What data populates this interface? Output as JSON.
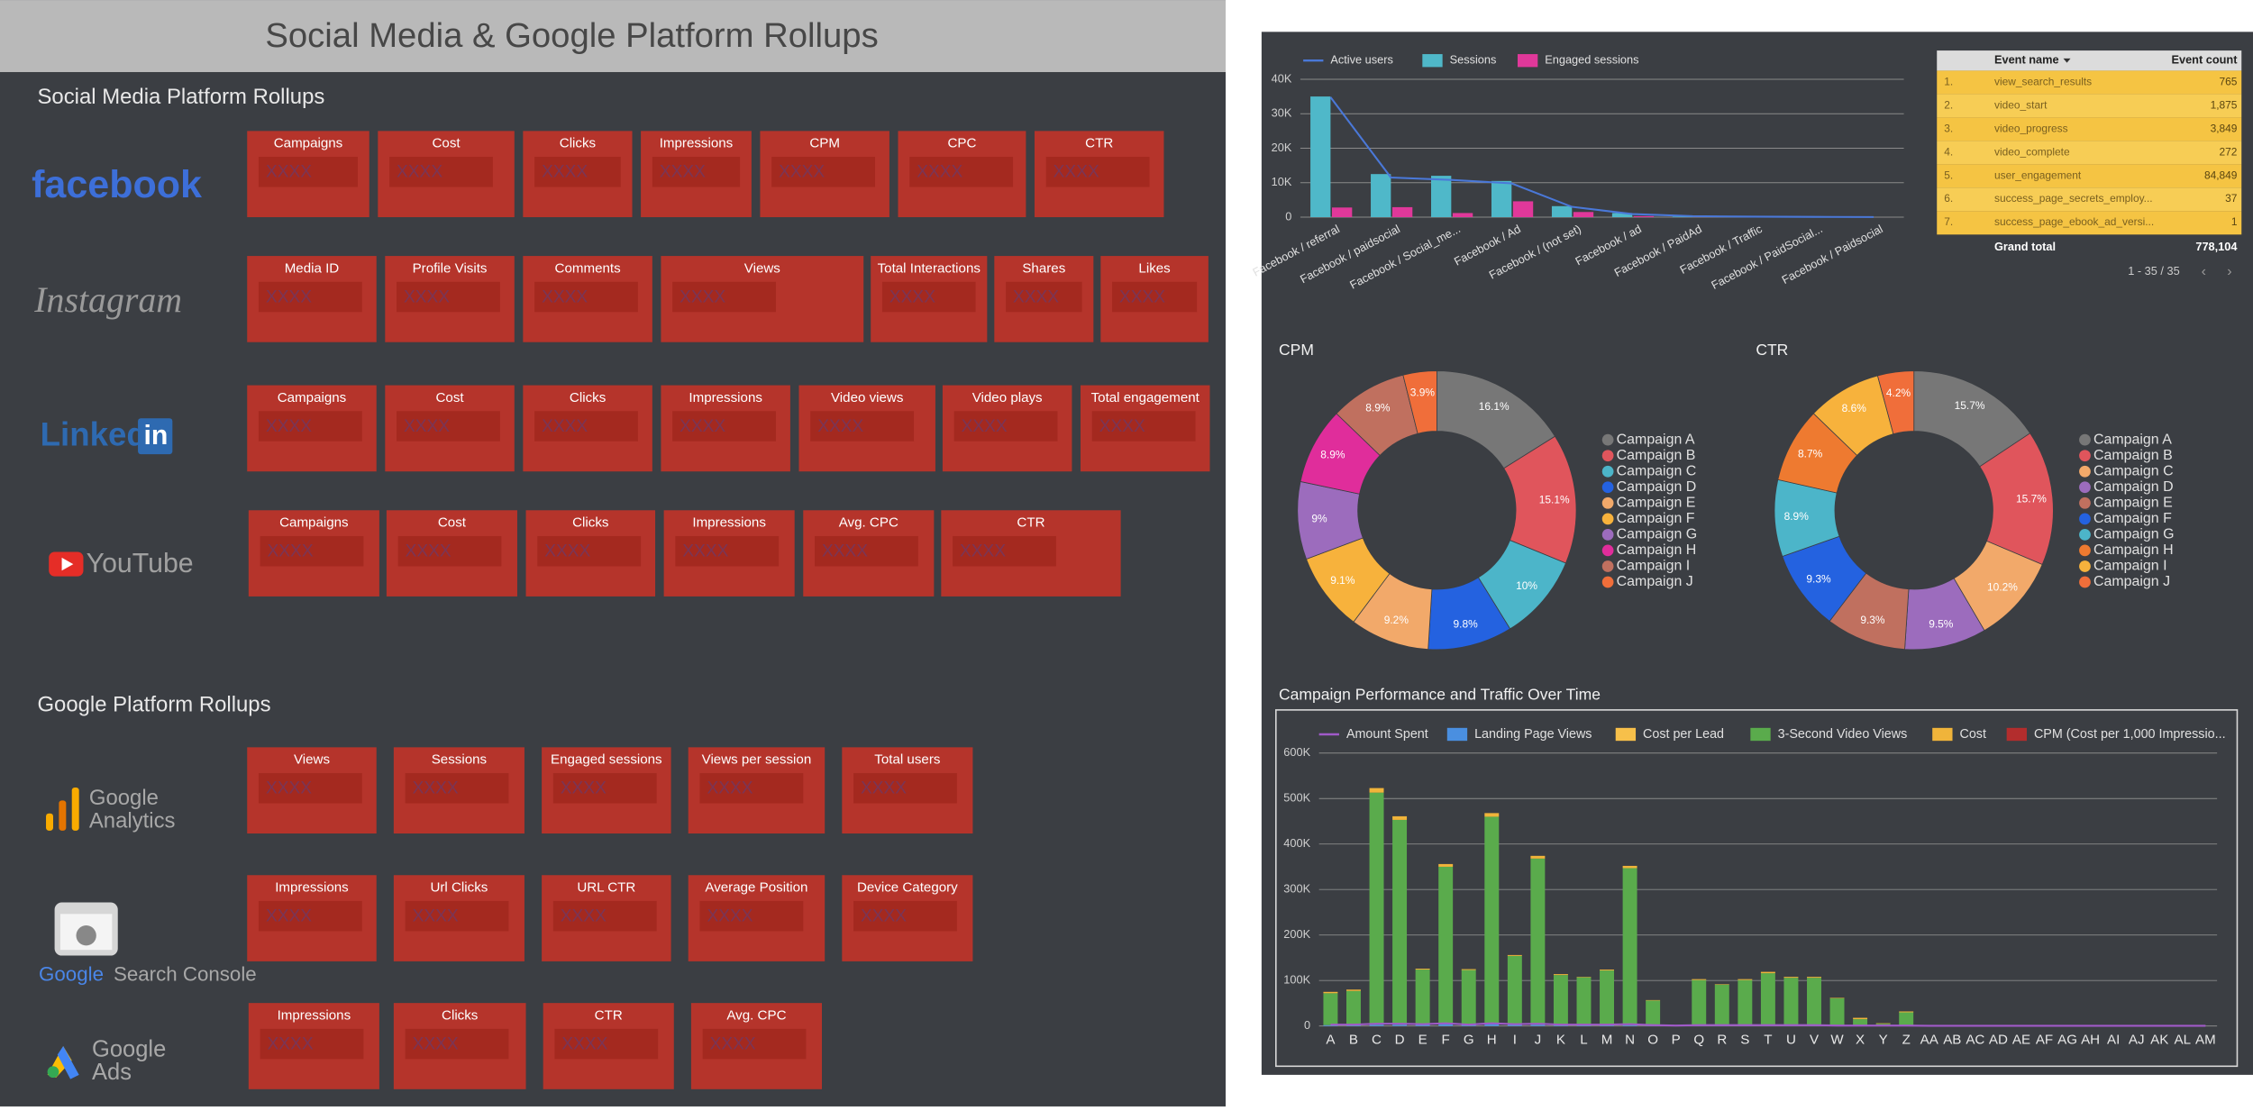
{
  "header": {
    "title": "Social Media & Google Platform Rollups"
  },
  "sections": [
    {
      "title": "Social Media Platform Rollups",
      "platforms": [
        {
          "logo": [
            "facebook"
          ],
          "cards": [
            {
              "label": "Campaigns",
              "value": "XXXX"
            },
            {
              "label": "Cost",
              "value": "XXXX"
            },
            {
              "label": "Clicks",
              "value": "XXXX"
            },
            {
              "label": "Impressions",
              "value": "XXXX"
            },
            {
              "label": "CPM",
              "value": "XXXX"
            },
            {
              "label": "CPC",
              "value": "XXXX"
            },
            {
              "label": "CTR",
              "value": "XXXX"
            }
          ]
        },
        {
          "logo": [
            "Instagram"
          ],
          "cards": [
            {
              "label": "Media ID",
              "value": "XXXX"
            },
            {
              "label": "Profile Visits",
              "value": "XXXX"
            },
            {
              "label": "Comments",
              "value": "XXXX"
            },
            {
              "label": "Views",
              "value": "XXXX"
            },
            {
              "label": "Total Interactions",
              "value": "XXXX"
            },
            {
              "label": "Shares",
              "value": "XXXX"
            },
            {
              "label": "Likes",
              "value": "XXXX"
            }
          ]
        },
        {
          "logo": [
            "Linked",
            "in"
          ],
          "cards": [
            {
              "label": "Campaigns",
              "value": "XXXX"
            },
            {
              "label": "Cost",
              "value": "XXXX"
            },
            {
              "label": "Clicks",
              "value": "XXXX"
            },
            {
              "label": "Impressions",
              "value": "XXXX"
            },
            {
              "label": "Video views",
              "value": "XXXX"
            },
            {
              "label": "Video plays",
              "value": "XXXX"
            },
            {
              "label": "Total engagement",
              "value": "XXXX"
            }
          ]
        },
        {
          "logo": [
            "YouTube"
          ],
          "cards": [
            {
              "label": "Campaigns",
              "value": "XXXX"
            },
            {
              "label": "Cost",
              "value": "XXXX"
            },
            {
              "label": "Clicks",
              "value": "XXXX"
            },
            {
              "label": "Impressions",
              "value": "XXXX"
            },
            {
              "label": "Avg. CPC",
              "value": "XXXX"
            },
            {
              "label": "CTR",
              "value": "XXXX"
            }
          ]
        }
      ]
    },
    {
      "title": "Google Platform Rollups",
      "platforms": [
        {
          "logo": [
            "Google",
            "Analytics"
          ],
          "cards": [
            {
              "label": "Views",
              "value": "XXXX"
            },
            {
              "label": "Sessions",
              "value": "XXXX"
            },
            {
              "label": "Engaged sessions",
              "value": "XXXX"
            },
            {
              "label": "Views per session",
              "value": "XXXX"
            },
            {
              "label": "Total users",
              "value": "XXXX"
            }
          ]
        },
        {
          "logo": [
            "Google",
            "Search Console"
          ],
          "cards": [
            {
              "label": "Impressions",
              "value": "XXXX"
            },
            {
              "label": "Url Clicks",
              "value": "XXXX"
            },
            {
              "label": "URL CTR",
              "value": "XXXX"
            },
            {
              "label": "Average Position",
              "value": "XXXX"
            },
            {
              "label": "Device Category",
              "value": "XXXX"
            }
          ]
        },
        {
          "logo": [
            "Google",
            "Ads"
          ],
          "cards": [
            {
              "label": "Impressions",
              "value": "XXXX"
            },
            {
              "label": "Clicks",
              "value": "XXXX"
            },
            {
              "label": "CTR",
              "value": "XXXX"
            },
            {
              "label": "Avg. CPC",
              "value": "XXXX"
            }
          ]
        }
      ]
    }
  ],
  "event_table": {
    "columns": [
      "Event name",
      "Event count"
    ],
    "rows": [
      [
        "1.",
        "view_search_results",
        "765"
      ],
      [
        "2.",
        "video_start",
        "1,875"
      ],
      [
        "3.",
        "video_progress",
        "3,849"
      ],
      [
        "4.",
        "video_complete",
        "272"
      ],
      [
        "5.",
        "user_engagement",
        "84,849"
      ],
      [
        "6.",
        "success_page_secrets_employ...",
        "37"
      ],
      [
        "7.",
        "success_page_ebook_ad_versi...",
        "1"
      ]
    ],
    "total": [
      "Grand total",
      "778,104"
    ],
    "pagination": "1 - 35 / 35"
  },
  "chart_data": [
    {
      "type": "bar",
      "legend": "top",
      "grid": true,
      "categories": [
        "Facebook / referral",
        "Facebook / paidsocial",
        "Facebook / Social_me...",
        "Facebook / Ad",
        "Facebook / (not set)",
        "Facebook / ad",
        "Facebook / PaidAd",
        "Facebook / Traffic",
        "Facebook / PaidSocial...",
        "Facebook / Paidsocial"
      ],
      "series": [
        {
          "name": "Active users",
          "color": "#4a78d8",
          "type": "line",
          "values": [
            34800,
            11500,
            10800,
            9800,
            3000,
            900,
            300,
            150,
            80,
            40
          ]
        },
        {
          "name": "Sessions",
          "color": "#4fb8c9",
          "values": [
            35000,
            12500,
            12000,
            10500,
            3200,
            1200,
            200,
            100,
            50,
            20
          ]
        },
        {
          "name": "Engaged sessions",
          "color": "#e0389a",
          "values": [
            2800,
            2900,
            1200,
            4600,
            1500,
            300,
            50,
            20,
            10,
            5
          ]
        }
      ],
      "ylim": [
        0,
        40000
      ],
      "yticks": [
        0,
        {
          "value": 10000,
          "label": "10K"
        },
        {
          "value": 20000,
          "label": "20K"
        },
        {
          "value": 30000,
          "label": "30K"
        },
        {
          "value": 40000,
          "label": "40K"
        }
      ]
    },
    {
      "type": "pie",
      "donut": true,
      "legend": "right",
      "title": "CPM",
      "categories": [
        "Campaign A",
        "Campaign B",
        "Campaign C",
        "Campaign D",
        "Campaign E",
        "Campaign F",
        "Campaign G",
        "Campaign H",
        "Campaign I",
        "Campaign J"
      ],
      "values": [
        16.1,
        15.1,
        10,
        9.8,
        9.2,
        9.1,
        9,
        8.9,
        8.9,
        3.9
      ],
      "value_labels": [
        "16.1%",
        "15.1%",
        "10%",
        "9.8%",
        "9.2%",
        "9.1%",
        "9%",
        "8.9%",
        "8.9%",
        "3.9%"
      ],
      "colors": [
        "#777777",
        "#e0555c",
        "#4cb5c9",
        "#2462e0",
        "#f2a96a",
        "#f7b23c",
        "#9c6cbd",
        "#e02d9b",
        "#c0705f",
        "#f06e3a"
      ]
    },
    {
      "type": "pie",
      "donut": true,
      "legend": "right",
      "title": "CTR",
      "categories": [
        "Campaign A",
        "Campaign B",
        "Campaign C",
        "Campaign D",
        "Campaign E",
        "Campaign F",
        "Campaign G",
        "Campaign H",
        "Campaign I",
        "Campaign J"
      ],
      "values": [
        15.7,
        15.7,
        10.2,
        9.5,
        9.3,
        9.3,
        8.9,
        8.7,
        8.6,
        4.2
      ],
      "value_labels": [
        "15.7%",
        "15.7%",
        "10.2%",
        "9.5%",
        "9.3%",
        "9.3%",
        "8.9%",
        "8.7%",
        "8.6%",
        "4.2%"
      ],
      "colors": [
        "#777777",
        "#e0555c",
        "#f2a96a",
        "#9c6cbd",
        "#c0705f",
        "#2462e0",
        "#4cb5c9",
        "#ee7a30",
        "#f7b23c",
        "#f06e3a"
      ]
    },
    {
      "type": "bar",
      "stacked": true,
      "legend": "top",
      "grid": true,
      "title": "Campaign Performance and Traffic Over Time",
      "categories": [
        "A",
        "B",
        "C",
        "D",
        "E",
        "F",
        "G",
        "H",
        "I",
        "J",
        "K",
        "L",
        "M",
        "N",
        "O",
        "P",
        "Q",
        "R",
        "S",
        "T",
        "U",
        "V",
        "W",
        "X",
        "Y",
        "Z",
        "AA",
        "AB",
        "AC",
        "AD",
        "AE",
        "AF",
        "AG",
        "AH",
        "AI",
        "AJ",
        "AK",
        "AL",
        "AM"
      ],
      "series": [
        {
          "name": "Amount Spent",
          "color": "#a05ac8",
          "type": "line",
          "values": [
            3000,
            3000,
            5000,
            5000,
            4000,
            6000,
            3000,
            6000,
            4000,
            5000,
            3000,
            3000,
            3000,
            4000,
            2000,
            1000,
            2000,
            2000,
            2000,
            2000,
            2000,
            2000,
            1000,
            1000,
            1000,
            1000,
            500,
            500,
            500,
            500,
            500,
            500,
            500,
            500,
            500,
            500,
            500,
            500,
            500
          ]
        },
        {
          "name": "Landing Page Views",
          "color": "#4a8fe0",
          "values": [
            2000,
            2000,
            3000,
            3000,
            4000,
            5000,
            3000,
            5000,
            4000,
            3000,
            2000,
            2000,
            2000,
            2000,
            1000,
            0,
            1000,
            1000,
            1000,
            1000,
            1000,
            1000,
            1000,
            0,
            0,
            0,
            0,
            0,
            0,
            0,
            0,
            0,
            0,
            0,
            0,
            0,
            0,
            0,
            0
          ]
        },
        {
          "name": "Cost per Lead",
          "color": "#f7c04a",
          "values": [
            0,
            0,
            0,
            0,
            0,
            0,
            0,
            0,
            0,
            0,
            0,
            0,
            0,
            0,
            0,
            0,
            0,
            0,
            0,
            0,
            0,
            0,
            0,
            0,
            0,
            0,
            0,
            0,
            0,
            0,
            0,
            0,
            0,
            0,
            0,
            0,
            0,
            0,
            0
          ]
        },
        {
          "name": "3-Second Video Views",
          "color": "#5aab4c",
          "values": [
            70000,
            75000,
            510000,
            450000,
            120000,
            345000,
            120000,
            455000,
            150000,
            365000,
            110000,
            105000,
            120000,
            345000,
            55000,
            0,
            100000,
            90000,
            100000,
            115000,
            105000,
            105000,
            60000,
            15000,
            5000,
            30000,
            0,
            0,
            0,
            0,
            0,
            0,
            0,
            0,
            0,
            0,
            0,
            0,
            0
          ]
        },
        {
          "name": "Cost",
          "color": "#f0b43a",
          "values": [
            3000,
            3000,
            10000,
            8000,
            2000,
            6000,
            2000,
            8000,
            2000,
            6000,
            2000,
            1000,
            2000,
            5000,
            1000,
            0,
            2000,
            1000,
            2000,
            3000,
            2000,
            2000,
            1000,
            3000,
            1000,
            2000,
            0,
            0,
            0,
            0,
            0,
            0,
            0,
            0,
            0,
            0,
            0,
            0,
            0
          ]
        },
        {
          "name": "CPM (Cost per 1,000 Impressio...",
          "color": "#b32d2d",
          "values": [
            0,
            0,
            0,
            0,
            0,
            0,
            0,
            0,
            0,
            0,
            0,
            0,
            0,
            0,
            0,
            0,
            0,
            0,
            0,
            0,
            0,
            0,
            0,
            0,
            0,
            0,
            0,
            0,
            0,
            0,
            0,
            0,
            0,
            0,
            0,
            0,
            0,
            0,
            0
          ]
        }
      ],
      "ylim": [
        0,
        600000
      ],
      "yticks": [
        0,
        {
          "value": 100000,
          "label": "100K"
        },
        {
          "value": 200000,
          "label": "200K"
        },
        {
          "value": 300000,
          "label": "300K"
        },
        {
          "value": 400000,
          "label": "400K"
        },
        {
          "value": 500000,
          "label": "500K"
        },
        {
          "value": 600000,
          "label": "600K"
        }
      ]
    }
  ]
}
